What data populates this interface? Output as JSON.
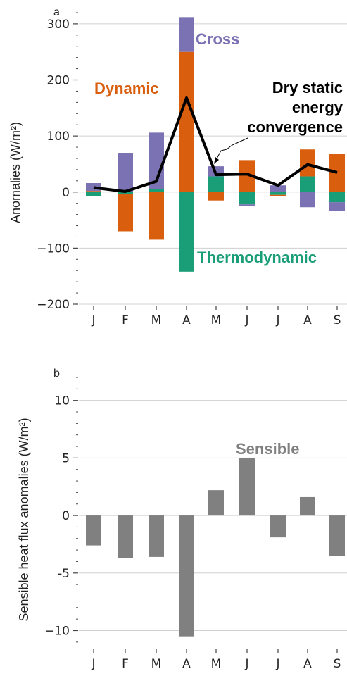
{
  "colors": {
    "cross": "#7b72b3",
    "dynamic": "#d95f0e",
    "thermodynamic": "#1a9e77",
    "dse": "#000000",
    "sensible": "#808080",
    "grid": "#d0d0d0",
    "axis": "#444444"
  },
  "chart_data": [
    {
      "panel": "a",
      "type": "bar",
      "stacked": true,
      "categories": [
        "J",
        "F",
        "M",
        "A",
        "M",
        "J",
        "J",
        "A",
        "S"
      ],
      "ylabel": "Anomalies (W/m²)",
      "ylim": [
        -200,
        330
      ],
      "yticks": [
        -200,
        -100,
        0,
        100,
        200,
        300
      ],
      "ytick_labels": [
        "−200",
        "−100",
        "0",
        "100",
        "200",
        "300"
      ],
      "grid": true,
      "series": [
        {
          "name": "Thermodynamic",
          "key": "thermodynamic",
          "values": [
            -7,
            -3,
            5,
            -142,
            28,
            -22,
            -5,
            28,
            -18
          ]
        },
        {
          "name": "Dynamic",
          "key": "dynamic",
          "values": [
            2,
            -67,
            -85,
            250,
            -15,
            57,
            -2,
            48,
            68
          ]
        },
        {
          "name": "Cross",
          "key": "cross",
          "values": [
            14,
            70,
            101,
            62,
            18,
            -3,
            12,
            -27,
            -15
          ]
        }
      ],
      "line": {
        "name_lines": [
          "Dry static",
          "energy",
          "convergence"
        ],
        "key": "dse",
        "values": [
          8,
          1,
          19,
          168,
          31,
          32,
          12,
          49,
          35
        ]
      },
      "labels": {
        "cross": "Cross",
        "dynamic": "Dynamic",
        "thermodynamic": "Thermodynamic"
      }
    },
    {
      "panel": "b",
      "type": "bar",
      "categories": [
        "J",
        "F",
        "M",
        "A",
        "M",
        "J",
        "J",
        "A",
        "S"
      ],
      "ylabel": "Sensible heat flux anomalies (W/m²)",
      "ylim": [
        -11.5,
        12
      ],
      "yticks": [
        -10,
        -5,
        0,
        5,
        10
      ],
      "ytick_labels": [
        "−10",
        "-5",
        "0",
        "5",
        "10"
      ],
      "grid": true,
      "series": [
        {
          "name": "Sensible",
          "key": "sensible",
          "values": [
            -2.6,
            -3.7,
            -3.6,
            -10.5,
            2.2,
            5.0,
            -1.9,
            1.6,
            -3.5
          ]
        }
      ]
    }
  ]
}
